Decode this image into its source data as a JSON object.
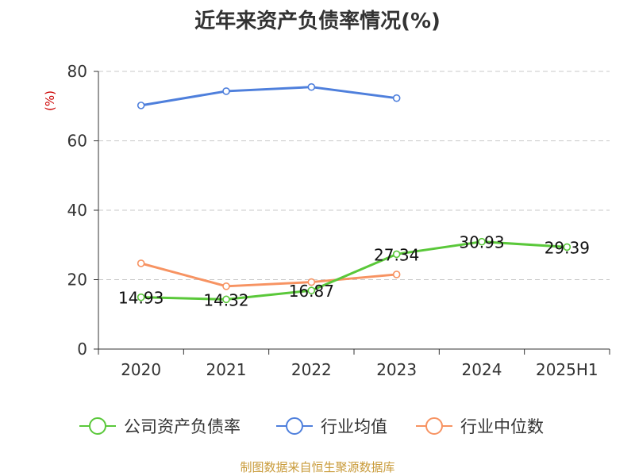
{
  "chart_data": {
    "type": "line",
    "title": "近年来资产负债率情况(%)",
    "ylabel": "(%)",
    "xlabel": "",
    "categories": [
      "2020",
      "2021",
      "2022",
      "2023",
      "2024",
      "2025H1"
    ],
    "ylim": [
      0,
      80
    ],
    "yticks": [
      0,
      20,
      40,
      60,
      80
    ],
    "grid": true,
    "legend_position": "bottom",
    "series": [
      {
        "name": "公司资产负债率",
        "color": "#5ac83a",
        "values": [
          14.93,
          14.32,
          16.87,
          27.34,
          30.93,
          29.39
        ],
        "labels": [
          "14.93",
          "14.32",
          "16.87",
          "27.34",
          "30.93",
          "29.39"
        ]
      },
      {
        "name": "行业均值",
        "color": "#4e7fdc",
        "values": [
          70.2,
          74.3,
          75.5,
          72.3,
          null,
          null
        ]
      },
      {
        "name": "行业中位数",
        "color": "#f79362",
        "values": [
          24.7,
          18.1,
          19.3,
          21.5,
          null,
          null
        ]
      }
    ]
  },
  "source": {
    "text": "制图数据来自恒生聚源数据库",
    "color": "#c99b3a"
  },
  "colors": {
    "axis": "#333333",
    "grid": "#c8c8c8",
    "ylabel": "#cc0000"
  }
}
